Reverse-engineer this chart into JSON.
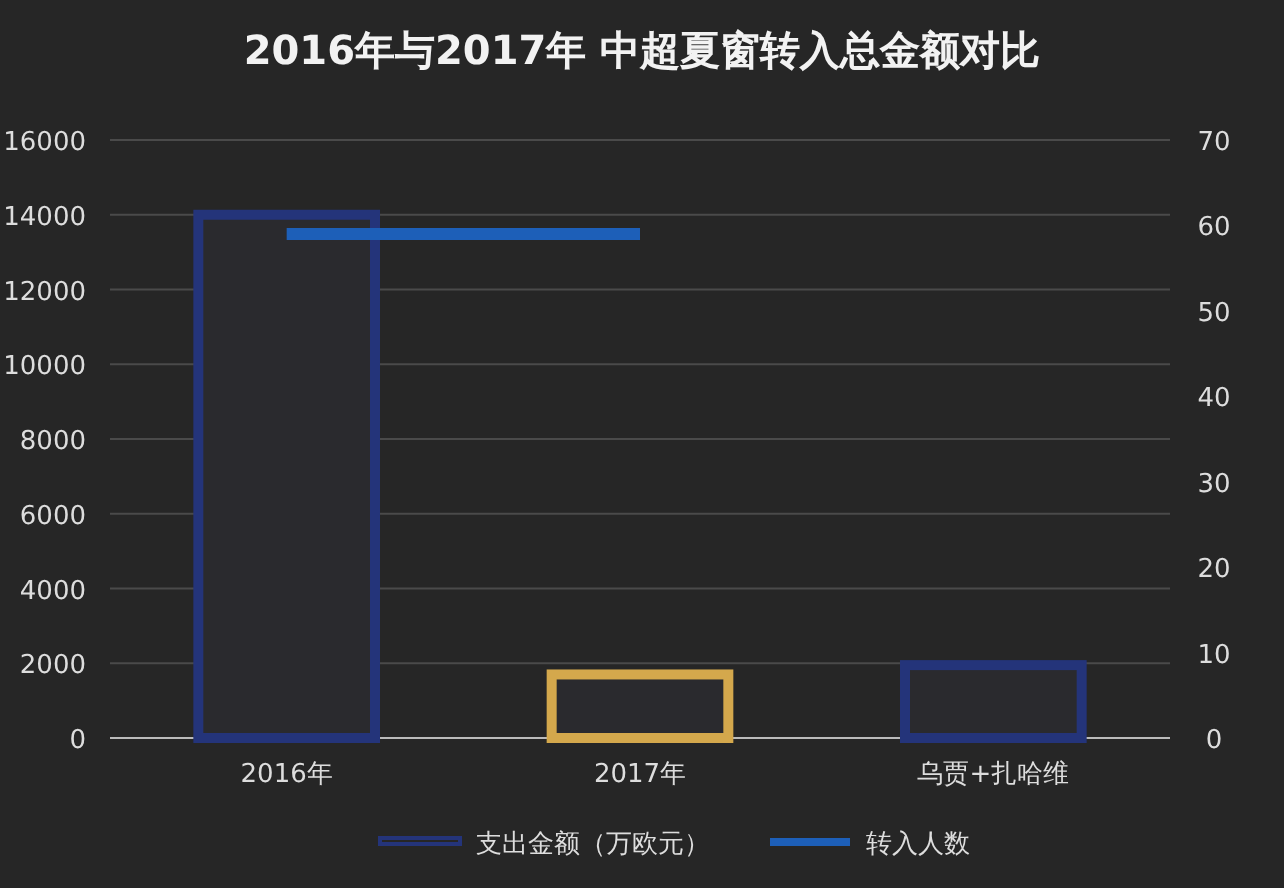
{
  "chart_data": {
    "type": "bar",
    "title": "2016年与2017年  中超夏窗转入总金额对比",
    "categories": [
      "2016年",
      "2017年",
      "乌贾+扎哈维"
    ],
    "series": [
      {
        "name": "支出金额（万欧元）",
        "colors": [
          "#24347a",
          "#d4a84c",
          "#24347a"
        ],
        "values": [
          14000,
          1700,
          1950
        ]
      },
      {
        "name": "转入人数",
        "type": "line",
        "axis": "y2",
        "color": "#1d5fb8",
        "values": [
          59,
          59,
          null
        ]
      }
    ],
    "ylim": [
      0,
      16000
    ],
    "yticks": [
      0,
      2000,
      4000,
      6000,
      8000,
      10000,
      12000,
      14000,
      16000
    ],
    "y2lim": [
      0,
      70
    ],
    "y2ticks": [
      0,
      10,
      20,
      30,
      40,
      50,
      60,
      70
    ],
    "grid": "y",
    "legend": "bottom"
  }
}
